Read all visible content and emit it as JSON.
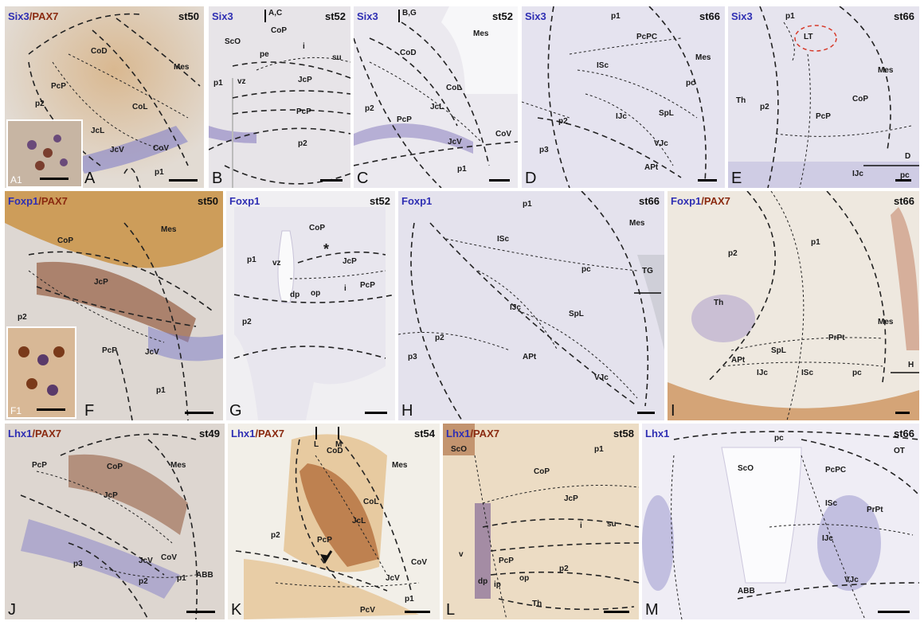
{
  "panels": {
    "A": {
      "letter": "A",
      "stain_a": "Six3",
      "sep": "/",
      "stain_b": "PAX7",
      "stage": "st50",
      "labels": {
        "cod": "CoD",
        "mes": "Mes",
        "pcp": "PcP",
        "p2": "p2",
        "col": "CoL",
        "jcl": "JcL",
        "jcv": "JcV",
        "cov": "CoV",
        "p1": "p1"
      },
      "inset": "A1"
    },
    "B": {
      "letter": "B",
      "stain": "Six3",
      "stage": "st52",
      "cut": "A,C",
      "labels": {
        "sco": "ScO",
        "cop": "CoP",
        "pe": "pe",
        "i": "i",
        "su": "su",
        "p1": "p1",
        "vz": "vz",
        "jcp": "JcP",
        "pcp": "PcP",
        "p2": "p2"
      }
    },
    "C": {
      "letter": "C",
      "stain": "Six3",
      "stage": "st52",
      "cut": "B,G",
      "labels": {
        "mes": "Mes",
        "cod": "CoD",
        "col": "CoL",
        "jcl": "JcL",
        "p2": "p2",
        "pcp": "PcP",
        "cov": "CoV",
        "jcv": "JcV",
        "p1": "p1"
      }
    },
    "D": {
      "letter": "D",
      "stain": "Six3",
      "stage": "st66",
      "labels": {
        "p1": "p1",
        "pcpc": "PcPC",
        "mes": "Mes",
        "isc": "ISc",
        "pc": "pc",
        "ijc": "IJc",
        "spl": "SpL",
        "p2": "p2",
        "p3": "p3",
        "vjc": "VJc",
        "apt": "APt"
      }
    },
    "E": {
      "letter": "E",
      "stain": "Six3",
      "stage": "st66",
      "cut": "D",
      "labels": {
        "p1": "p1",
        "lt": "LT",
        "mes": "Mes",
        "th": "Th",
        "p2": "p2",
        "cop": "CoP",
        "pcp": "PcP",
        "ijc": "IJc",
        "pc": "pc"
      }
    },
    "F": {
      "letter": "F",
      "stain_a": "Foxp1",
      "sep": "/",
      "stain_b": "PAX7",
      "stage": "st50",
      "labels": {
        "cop": "CoP",
        "mes": "Mes",
        "jcp": "JcP",
        "p2": "p2",
        "pcp": "PcP",
        "jcv": "JcV",
        "p1": "p1"
      },
      "inset": "F1"
    },
    "G": {
      "letter": "G",
      "stain": "Foxp1",
      "stage": "st52",
      "labels": {
        "cop": "CoP",
        "p1": "p1",
        "vz": "vz",
        "jcp": "JcP",
        "dp": "dp",
        "op": "op",
        "i": "i",
        "pcp": "PcP",
        "p2": "p2",
        "star": "*"
      }
    },
    "H": {
      "letter": "H",
      "stain": "Foxp1",
      "stage": "st66",
      "labels": {
        "p1": "p1",
        "mes": "Mes",
        "isc": "ISc",
        "pc": "pc",
        "tg": "TG",
        "ijc": "IJc",
        "spl": "SpL",
        "p2": "p2",
        "p3": "p3",
        "apt": "APt",
        "vjc": "VJc"
      }
    },
    "I": {
      "letter": "I",
      "stain_a": "Foxp1",
      "sep": "/",
      "stain_b": "PAX7",
      "stage": "st66",
      "cut": "H",
      "labels": {
        "p1": "p1",
        "p2": "p2",
        "th": "Th",
        "mes": "Mes",
        "prpt": "PrPt",
        "spl": "SpL",
        "apt": "APt",
        "ijc": "IJc",
        "isc": "ISc",
        "pc": "pc"
      }
    },
    "J": {
      "letter": "J",
      "stain_a": "Lhx1",
      "sep": "/",
      "stain_b": "PAX7",
      "stage": "st49",
      "labels": {
        "pcp": "PcP",
        "cop": "CoP",
        "mes": "Mes",
        "jcp": "JcP",
        "p3": "p3",
        "jcv": "JcV",
        "cov": "CoV",
        "p2": "p2",
        "p1": "p1",
        "abb": "ABB"
      }
    },
    "K": {
      "letter": "K",
      "stain_a": "Lhx1",
      "sep": "/",
      "stain_b": "PAX7",
      "stage": "st54",
      "cut_l": "L",
      "cut_m": "M",
      "labels": {
        "cod": "CoD",
        "mes": "Mes",
        "col": "CoL",
        "jcl": "JcL",
        "p2": "p2",
        "pcp": "PcP",
        "cov": "CoV",
        "jcv": "JcV",
        "p1": "p1",
        "pcv": "PcV"
      }
    },
    "L": {
      "letter": "L",
      "stain_a": "Lhx1",
      "sep": "/",
      "stain_b": "PAX7",
      "stage": "st58",
      "labels": {
        "sco": "ScO",
        "cop": "CoP",
        "p1": "p1",
        "jcp": "JcP",
        "i": "i",
        "su": "su",
        "v": "v",
        "pcp": "PcP",
        "p2": "p2",
        "dp": "dp",
        "ip": "ip",
        "op": "op",
        "th": "Th"
      }
    },
    "M": {
      "letter": "M",
      "stain": "Lhx1",
      "stage": "st66",
      "labels": {
        "pc": "pc",
        "ot": "OT",
        "sco": "ScO",
        "pcpc": "PcPC",
        "isc": "ISc",
        "prpt": "PrPt",
        "ijc": "IJc",
        "vjc": "VJc",
        "abb": "ABB"
      }
    }
  },
  "colors": {
    "blue_stain": "#2f2fb3",
    "brown_stain": "#8a2a10"
  }
}
